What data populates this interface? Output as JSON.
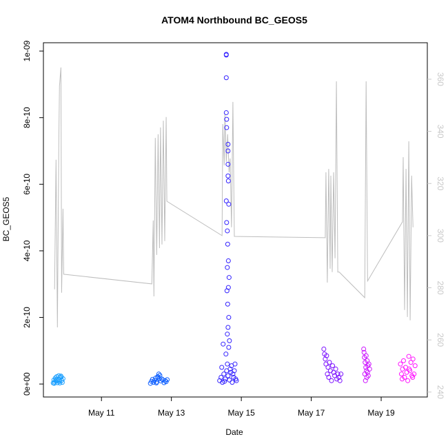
{
  "chart_data": {
    "type": "scatter",
    "title": "ATOM4 Northbound BC_GEOS5",
    "x_label": "Date",
    "y_label": "BC_GEOS5",
    "xlim": [
      9.34,
      20.32
    ],
    "xticks": [
      {
        "value": 11,
        "label": "May 11"
      },
      {
        "value": 13,
        "label": "May 13"
      },
      {
        "value": 15,
        "label": "May 15"
      },
      {
        "value": 17,
        "label": "May 17"
      },
      {
        "value": 19,
        "label": "May 19"
      }
    ],
    "ylim": [
      -3.9e-11,
      1.025e-09
    ],
    "yticks": [
      {
        "value": 0,
        "label": "0e+00"
      },
      {
        "value": 2e-10,
        "label": "2e-10"
      },
      {
        "value": 4e-10,
        "label": "4e-10"
      },
      {
        "value": 6e-10,
        "label": "6e-10"
      },
      {
        "value": 8e-10,
        "label": "8e-10"
      },
      {
        "value": 1e-09,
        "label": "1e-09"
      }
    ],
    "y2lim": [
      238.1,
      374
    ],
    "y2ticks": [
      240,
      260,
      280,
      300,
      320,
      340,
      360
    ],
    "y2_color": "#c8c8c8",
    "series": [
      {
        "type": "line",
        "axis": "y2",
        "color": "#bdbdbd",
        "x": [
          9.66,
          9.7,
          9.74,
          9.78,
          9.8,
          9.84,
          9.86,
          9.9,
          9.92,
          12.44,
          12.48,
          12.5,
          12.54,
          12.58,
          12.62,
          12.66,
          12.69,
          12.73,
          12.77,
          12.81,
          12.85,
          12.87,
          14.45,
          14.47,
          14.51,
          14.53,
          14.57,
          14.61,
          14.65,
          14.68,
          14.72,
          14.76,
          14.8,
          17.4,
          17.42,
          17.46,
          17.5,
          17.54,
          17.56,
          17.6,
          17.64,
          17.68,
          17.72,
          17.76,
          17.8,
          18.53,
          18.57,
          18.61,
          19.61,
          19.63,
          19.67,
          19.71,
          19.75,
          19.79,
          19.83,
          19.87,
          19.91
        ],
        "values": [
          279.4,
          329.1,
          264.8,
          334.4,
          357.4,
          364.5,
          278.1,
          310.3,
          285.2,
          281.5,
          305.8,
          276.7,
          337.5,
          292.6,
          338.9,
          295.2,
          341.5,
          296.6,
          344.1,
          297.9,
          345.5,
          313.2,
          300.0,
          342.8,
          327.0,
          346.8,
          328.3,
          338.9,
          324.3,
          329.6,
          303.2,
          351.3,
          299.7,
          299.2,
          324.3,
          282.0,
          325.6,
          287.3,
          323.0,
          286.0,
          324.3,
          291.3,
          359.2,
          286.0,
          286.0,
          276.2,
          359.2,
          282.6,
          305.3,
          330.1,
          271.5,
          325.6,
          268.8,
          336.2,
          267.5,
          323.0,
          303.2
        ]
      },
      {
        "type": "scatter",
        "color": "#1a9fff",
        "x": [
          9.62,
          9.64,
          9.66,
          9.68,
          9.7,
          9.72,
          9.74,
          9.76,
          9.78,
          9.8,
          9.82,
          9.84,
          9.86,
          9.88,
          9.9,
          9.65,
          9.75,
          9.85,
          9.71,
          9.81
        ],
        "values": [
          3e-12,
          1.2e-11,
          6e-12,
          1.8e-11,
          9e-12,
          2.2e-11,
          4e-12,
          1.5e-11,
          2.5e-11,
          8e-12,
          1.9e-11,
          2.4e-11,
          1.1e-11,
          5e-12,
          1.6e-11,
          2e-12,
          1e-11,
          2.1e-11,
          1.4e-11,
          3e-12
        ]
      },
      {
        "type": "scatter",
        "color": "#1060ff",
        "x": [
          12.4,
          12.43,
          12.46,
          12.49,
          12.52,
          12.55,
          12.58,
          12.61,
          12.64,
          12.67,
          12.7,
          12.73,
          12.76,
          12.79,
          12.82,
          12.85,
          12.88,
          12.62,
          12.66,
          12.57
        ],
        "values": [
          2e-12,
          8e-12,
          1.4e-11,
          5e-12,
          1.1e-11,
          1.8e-11,
          6e-12,
          2.2e-11,
          3e-11,
          2.6e-11,
          9e-12,
          1.5e-11,
          1.2e-11,
          4e-12,
          1e-11,
          7e-12,
          1.3e-11,
          2.1e-11,
          1.6e-11,
          3e-12
        ]
      },
      {
        "type": "scatter",
        "color": "#3322ff",
        "x": [
          14.38,
          14.42,
          14.46,
          14.5,
          14.54,
          14.58,
          14.62,
          14.66,
          14.7,
          14.74,
          14.78,
          14.82,
          14.86,
          14.44,
          14.52,
          14.6,
          14.68,
          14.76,
          14.84,
          14.48,
          14.56,
          14.64,
          14.72,
          14.8,
          14.57,
          14.57,
          14.57,
          14.57,
          14.58,
          14.58,
          14.57,
          14.58,
          14.62,
          14.62,
          14.62,
          14.62,
          14.63,
          14.64,
          14.6,
          14.61,
          14.63,
          14.6,
          14.65,
          14.59,
          14.61,
          14.64,
          14.62,
          14.6,
          14.63,
          14.66
        ],
        "values": [
          1e-11,
          2e-11,
          5e-12,
          3e-11,
          1.5e-11,
          4e-11,
          2.5e-11,
          1.2e-11,
          3.5e-11,
          5e-12,
          2e-11,
          6e-11,
          1e-11,
          5e-11,
          8e-12,
          6e-11,
          4.5e-11,
          3e-11,
          1.5e-11,
          1.2e-10,
          9e-11,
          1.1e-10,
          5.5e-11,
          4e-11,
          9.9e-10,
          9.88e-10,
          9.2e-10,
          8.15e-10,
          7.95e-10,
          7.7e-10,
          5.5e-10,
          4.85e-10,
          7.2e-10,
          7e-10,
          6.6e-10,
          6.25e-10,
          6.1e-10,
          5.4e-10,
          4.6e-10,
          4.2e-10,
          3.7e-10,
          3.5e-10,
          3.2e-10,
          2.8e-10,
          2.4e-10,
          2e-10,
          1.7e-10,
          1.5e-10,
          2.9e-10,
          1.3e-10
        ]
      },
      {
        "type": "scatter",
        "color": "#7b0fff",
        "x": [
          17.36,
          17.38,
          17.4,
          17.42,
          17.44,
          17.46,
          17.48,
          17.5,
          17.52,
          17.55,
          17.58,
          17.61,
          17.64,
          17.67,
          17.7,
          17.73,
          17.76,
          17.79,
          17.82,
          17.85
        ],
        "values": [
          1.05e-10,
          9e-11,
          7.5e-11,
          6e-11,
          8.5e-11,
          3e-11,
          5e-11,
          2e-11,
          6.5e-11,
          4e-11,
          1e-11,
          5.5e-11,
          3.5e-11,
          2.5e-11,
          4.5e-11,
          1.5e-11,
          3e-11,
          2e-11,
          1e-11,
          3e-11
        ]
      },
      {
        "type": "scatter",
        "color": "#cc10ff",
        "x": [
          18.5,
          18.51,
          18.52,
          18.53,
          18.54,
          18.55,
          18.56,
          18.57,
          18.58,
          18.59,
          18.6,
          18.61,
          18.62,
          18.63,
          18.65,
          18.67
        ],
        "values": [
          1.05e-10,
          9.5e-11,
          8e-11,
          3e-11,
          6.5e-11,
          1e-11,
          5e-11,
          8.5e-11,
          4e-11,
          2e-11,
          7e-11,
          3.5e-11,
          5.5e-11,
          2.5e-11,
          6e-11,
          4.5e-11
        ]
      },
      {
        "type": "scatter",
        "color": "#ff10ff",
        "x": [
          19.55,
          19.58,
          19.61,
          19.64,
          19.67,
          19.7,
          19.73,
          19.76,
          19.79,
          19.82,
          19.85,
          19.88,
          19.91,
          19.94,
          19.97,
          19.6,
          19.8,
          19.9
        ],
        "values": [
          6e-11,
          3e-11,
          4.5e-11,
          7e-11,
          2e-11,
          5e-11,
          3.5e-11,
          1e-11,
          8.3e-11,
          4e-11,
          6.5e-11,
          2.5e-11,
          7.5e-11,
          3e-11,
          5.5e-11,
          1.5e-11,
          4.5e-11,
          2e-11
        ]
      }
    ]
  }
}
